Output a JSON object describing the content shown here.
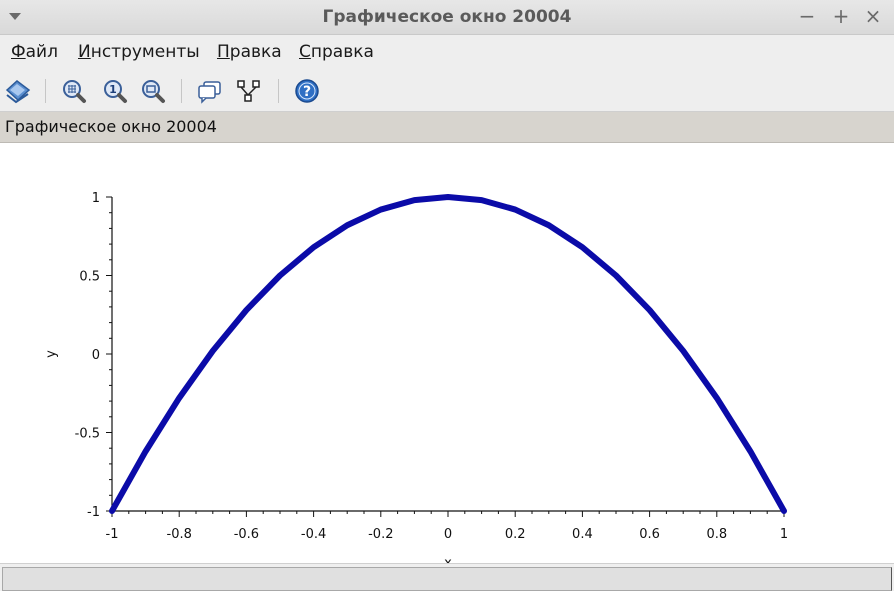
{
  "window": {
    "title": "Графическое окно 20004",
    "controls": {
      "minimize": "−",
      "maximize": "+",
      "close": "×"
    }
  },
  "menu": [
    {
      "underline": "Ф",
      "rest": "айл"
    },
    {
      "underline": "И",
      "rest": "нструменты"
    },
    {
      "underline": "П",
      "rest": "равка"
    },
    {
      "underline": "С",
      "rest": "правка"
    }
  ],
  "toolbar": {
    "icons": [
      "rotate-icon",
      "zoom-in-icon",
      "zoom-original-icon",
      "zoom-out-icon",
      "datatip-icon",
      "editor-icon",
      "help-icon"
    ]
  },
  "status": {
    "text": "Графическое окно 20004"
  },
  "chart_data": {
    "type": "line",
    "title": "",
    "xlabel": "x",
    "ylabel": "y",
    "xlim": [
      -1,
      1
    ],
    "ylim": [
      -1,
      1
    ],
    "x_ticks": [
      "-1",
      "-0.8",
      "-0.6",
      "-0.4",
      "-0.2",
      "0",
      "0.2",
      "0.4",
      "0.6",
      "0.8",
      "1"
    ],
    "y_ticks": [
      "1",
      "0.5",
      "0",
      "-0.5",
      "-1"
    ],
    "series": [
      {
        "color": "#0b0ba8",
        "x": [
          -1,
          -0.9,
          -0.8,
          -0.7,
          -0.6,
          -0.5,
          -0.4,
          -0.3,
          -0.2,
          -0.1,
          0,
          0.1,
          0.2,
          0.3,
          0.4,
          0.5,
          0.6,
          0.7,
          0.8,
          0.9,
          1
        ],
        "y": [
          -1,
          -0.62,
          -0.28,
          0.02,
          0.28,
          0.5,
          0.68,
          0.82,
          0.92,
          0.98,
          1,
          0.98,
          0.92,
          0.82,
          0.68,
          0.5,
          0.28,
          0.02,
          -0.28,
          -0.62,
          -1
        ]
      }
    ],
    "grid": false,
    "legend": "none"
  }
}
